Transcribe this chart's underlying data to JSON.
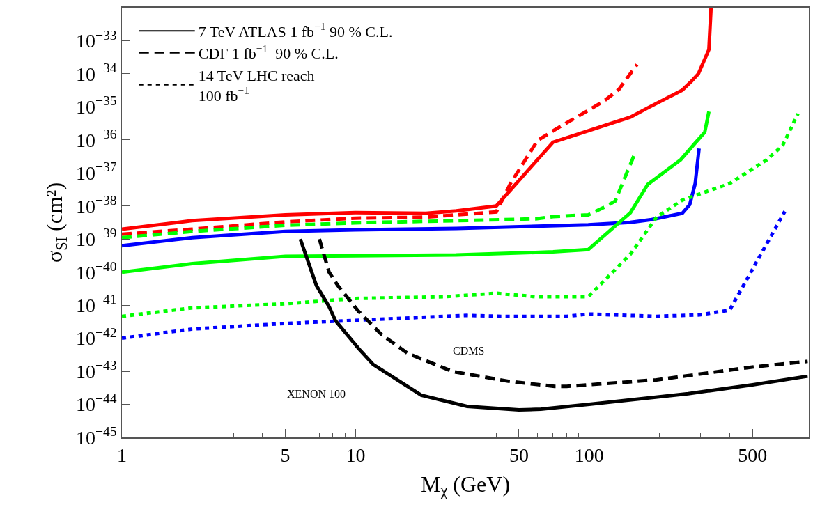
{
  "chart_data": {
    "type": "line",
    "xlabel": "M$_{χ}$ (GeV)",
    "ylabel": "σ$_{SI}$ (cm²)",
    "log": "xy",
    "xlim": [
      1,
      870
    ],
    "ylim": [
      1e-45,
      1e-32
    ],
    "xticks": [
      1,
      {
        "value": 2,
        "label": null
      },
      {
        "value": 3,
        "label": null
      },
      {
        "value": 4,
        "label": null
      },
      5,
      {
        "value": 6,
        "label": null
      },
      {
        "value": 7,
        "label": null
      },
      {
        "value": 8,
        "label": null
      },
      {
        "value": 9,
        "label": null
      },
      10,
      {
        "value": 20,
        "label": null
      },
      {
        "value": 30,
        "label": null
      },
      {
        "value": 40,
        "label": null
      },
      50,
      {
        "value": 60,
        "label": null
      },
      {
        "value": 70,
        "label": null
      },
      {
        "value": 80,
        "label": null
      },
      {
        "value": 90,
        "label": null
      },
      100,
      {
        "value": 200,
        "label": null
      },
      {
        "value": 300,
        "label": null
      },
      {
        "value": 400,
        "label": null
      },
      500,
      {
        "value": 600,
        "label": null
      },
      {
        "value": 700,
        "label": null
      },
      {
        "value": 800,
        "label": null
      }
    ],
    "yticks": [
      {
        "value": 1e-45,
        "label": "10$^{−45}$"
      },
      {
        "value": 1e-44,
        "label": "10$^{−44}$"
      },
      {
        "value": 1e-43,
        "label": "10$^{−43}$"
      },
      {
        "value": 1e-42,
        "label": "10$^{−42}$"
      },
      {
        "value": 1e-41,
        "label": "10$^{−41}$"
      },
      {
        "value": 1e-40,
        "label": "10$^{−40}$"
      },
      {
        "value": 1e-39,
        "label": "10$^{−39}$"
      },
      {
        "value": 1e-38,
        "label": "10$^{−38}$"
      },
      {
        "value": 1e-37,
        "label": "10$^{−37}$"
      },
      {
        "value": 1e-36,
        "label": "10$^{−36}$"
      },
      {
        "value": 1e-35,
        "label": "10$^{−35}$"
      },
      {
        "value": 1e-34,
        "label": "10$^{−34}$"
      },
      {
        "value": 1e-33,
        "label": "10$^{−33}$"
      }
    ],
    "legend": "top left",
    "marker": "none",
    "series": [
      {
        "name": "7 TeV ATLAS 1 fb$^{−1}$ 90 % C.L.",
        "color": "#000000",
        "line_style": "solid",
        "values": [
          null
        ]
      },
      {
        "name": "CDF 1 fb$^{−1}$  90 % C.L.",
        "color": "#000000",
        "line_style": "dashed",
        "values": [
          null
        ]
      },
      {
        "name": "14 TeV LHC reach\n100 fb$^{−1}$",
        "color": "#000000",
        "line_style": "dotted",
        "values": [
          null
        ]
      },
      {
        "color": "#ff0000",
        "line_style": "solid",
        "x": [
          1,
          2,
          5,
          10,
          20,
          27,
          40,
          70,
          150,
          178,
          250,
          274,
          293,
          325,
          332
        ],
        "values": [
          2e-39,
          3.6e-39,
          5.4e-39,
          6.3e-39,
          6e-39,
          7.1e-39,
          1e-38,
          8.5e-37,
          4.9e-36,
          9.3e-36,
          3.2e-35,
          6e-35,
          1e-34,
          5.4e-34,
          1e-32
        ]
      },
      {
        "color": "#ff0000",
        "line_style": "dashed",
        "x": [
          1,
          2,
          5,
          10,
          20,
          24,
          40,
          46,
          60,
          71,
          105,
          117,
          134,
          160
        ],
        "values": [
          1.4e-39,
          2e-39,
          3.3e-39,
          4.3e-39,
          4.6e-39,
          5.1e-39,
          6.6e-39,
          4.8e-38,
          9.5e-37,
          2e-36,
          1e-35,
          1.6e-35,
          3.4e-35,
          1.9e-34
        ]
      },
      {
        "color": "#00ff00",
        "line_style": "dashed",
        "x": [
          1,
          2,
          5,
          10,
          27,
          59,
          70,
          99,
          117,
          129,
          156
        ],
        "values": [
          1.1e-39,
          1.7e-39,
          2.6e-39,
          3.1e-39,
          3.6e-39,
          4.1e-39,
          4.8e-39,
          5.4e-39,
          9.5e-39,
          1.4e-38,
          3.6e-37
        ]
      },
      {
        "color": "#0000ff",
        "line_style": "solid",
        "x": [
          1,
          2,
          5,
          10,
          27,
          99,
          150,
          185,
          250,
          269,
          284,
          295
        ],
        "values": [
          6.3e-40,
          1.1e-39,
          1.7e-39,
          1.9e-39,
          2.1e-39,
          2.7e-39,
          3.2e-39,
          3.9e-39,
          6e-39,
          1.1e-38,
          4.8e-38,
          5.5e-37
        ]
      },
      {
        "color": "#00ff00",
        "line_style": "solid",
        "x": [
          1,
          2,
          5,
          27,
          70,
          99,
          150,
          178,
          246,
          282,
          312,
          325
        ],
        "values": [
          1e-40,
          1.8e-40,
          3e-40,
          3.3e-40,
          4.1e-40,
          4.8e-40,
          6.3e-39,
          4.5e-38,
          2.5e-37,
          7.6e-37,
          1.7e-36,
          7.2e-36
        ]
      },
      {
        "color": "#00ff00",
        "line_style": "dotted",
        "x": [
          1,
          2,
          5,
          10,
          24,
          40,
          59,
          99,
          150,
          194,
          250,
          399,
          575,
          673,
          782
        ],
        "values": [
          4.6e-42,
          8.3e-42,
          1.1e-41,
          1.6e-41,
          1.8e-41,
          2.3e-41,
          1.8e-41,
          1.8e-41,
          3.5e-40,
          4.6e-39,
          1.5e-38,
          4.8e-38,
          2.5e-37,
          6.9e-37,
          6.2e-36
        ]
      },
      {
        "color": "#0000ff",
        "line_style": "dotted",
        "x": [
          1,
          2,
          5,
          24,
          30,
          42,
          80,
          99,
          194,
          297,
          399,
          687
        ],
        "values": [
          1e-42,
          1.9e-42,
          2.8e-42,
          4.6e-42,
          4.9e-42,
          4.6e-42,
          4.6e-42,
          5.4e-42,
          4.6e-42,
          5.1e-42,
          7.1e-42,
          6.9e-39
        ]
      },
      {
        "color": "#000000",
        "line_style": "solid",
        "x": [
          5.8,
          6.8,
          7.7,
          8.2,
          10.3,
          11.9,
          19.1,
          30,
          50,
          62,
          100,
          265,
          500,
          860
        ],
        "values": [
          1e-39,
          3.9e-41,
          9.1e-42,
          3.4e-42,
          4.9e-43,
          1.6e-43,
          1.9e-44,
          8.7e-45,
          6.8e-45,
          7.1e-45,
          1e-44,
          2.1e-44,
          3.9e-44,
          7.1e-44
        ]
      },
      {
        "color": "#000000",
        "line_style": "dashed",
        "x": [
          7.0,
          7.7,
          8.4,
          10.3,
          12.9,
          16.7,
          26.1,
          45,
          71,
          80,
          194,
          479,
          860
        ],
        "values": [
          1e-39,
          1e-40,
          3.9e-41,
          6.5e-42,
          1.3e-42,
          3.5e-43,
          9.8e-44,
          5e-44,
          3.5e-44,
          3.5e-44,
          5.5e-44,
          1.3e-43,
          2e-43
        ]
      }
    ],
    "annotations": [
      "XENON 100",
      "CDMS"
    ]
  }
}
